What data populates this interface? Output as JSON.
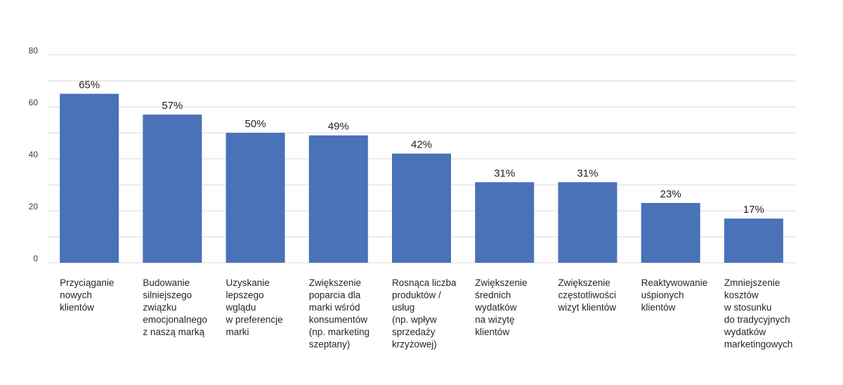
{
  "chart_data": {
    "type": "bar",
    "categories": [
      [
        "Przyciąganie",
        "nowych",
        "klientów"
      ],
      [
        "Budowanie",
        "silniejszego",
        "związku",
        "emocjonalnego",
        "z naszą marką"
      ],
      [
        "Uzyskanie",
        "lepszego",
        "wglądu",
        "w preferencje",
        "marki"
      ],
      [
        "Zwiększenie",
        "poparcia dla",
        "marki wśród",
        "konsumentów",
        "(np. marketing",
        "szeptany)"
      ],
      [
        "Rosnąca liczba",
        "produktów /",
        "usług",
        "(np. wpływ",
        "sprzedaży",
        "krzyżowej)"
      ],
      [
        "Zwiększenie",
        "średnich",
        "wydatków",
        "na wizytę",
        "klientów"
      ],
      [
        "Zwiększenie",
        "częstotliwości",
        "wizyt klientów"
      ],
      [
        "Reaktywowanie",
        "uśpionych",
        "klientów"
      ],
      [
        "Zmniejszenie",
        "kosztów",
        "w stosunku",
        "do tradycyjnych",
        "wydatków",
        "marketingowych"
      ]
    ],
    "values": [
      65,
      57,
      50,
      49,
      42,
      31,
      31,
      23,
      17
    ],
    "data_labels": [
      "65%",
      "57%",
      "50%",
      "49%",
      "42%",
      "31%",
      "31%",
      "23%",
      "17%"
    ],
    "y_ticks": [
      0,
      20,
      40,
      60,
      80
    ],
    "ylim": [
      0,
      80
    ],
    "grid": true,
    "legend": "none",
    "bar_color": "#4a72b8",
    "gridline_color": "#d9d9d9"
  }
}
